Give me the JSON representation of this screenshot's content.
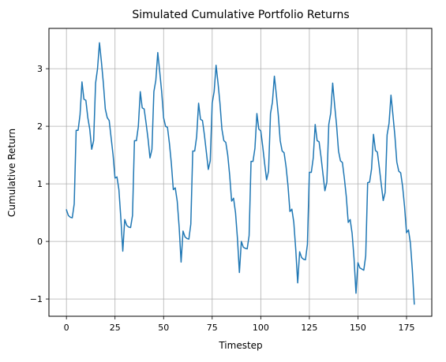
{
  "chart_data": {
    "type": "line",
    "title": "Simulated Cumulative Portfolio Returns",
    "xlabel": "Timestep",
    "ylabel": "Cumulative Return",
    "xlim": [
      -9,
      188
    ],
    "ylim": [
      -1.3,
      3.7
    ],
    "xticks": [
      0,
      25,
      50,
      75,
      100,
      125,
      150,
      175
    ],
    "yticks": [
      -1,
      0,
      1,
      2,
      3
    ],
    "grid": true,
    "series": [
      {
        "color": "#1f77b4",
        "x": [
          0,
          1,
          2,
          3,
          4,
          5,
          6,
          7,
          8,
          9,
          10,
          11,
          12,
          13,
          14,
          15,
          16,
          17,
          18,
          19,
          20,
          21,
          22,
          23,
          24,
          25,
          26,
          27,
          28,
          29,
          30,
          31,
          32,
          33,
          34,
          35,
          36,
          37,
          38,
          39,
          40,
          41,
          42,
          43,
          44,
          45,
          46,
          47,
          48,
          49,
          50,
          51,
          52,
          53,
          54,
          55,
          56,
          57,
          58,
          59,
          60,
          61,
          62,
          63,
          64,
          65,
          66,
          67,
          68,
          69,
          70,
          71,
          72,
          73,
          74,
          75,
          76,
          77,
          78,
          79,
          80,
          81,
          82,
          83,
          84,
          85,
          86,
          87,
          88,
          89,
          90,
          91,
          92,
          93,
          94,
          95,
          96,
          97,
          98,
          99,
          100,
          101,
          102,
          103,
          104,
          105,
          106,
          107,
          108,
          109,
          110,
          111,
          112,
          113,
          114,
          115,
          116,
          117,
          118,
          119,
          120,
          121,
          122,
          123,
          124,
          125,
          126,
          127,
          128,
          129,
          130,
          131,
          132,
          133,
          134,
          135,
          136,
          137,
          138,
          139,
          140,
          141,
          142,
          143,
          144,
          145,
          146,
          147,
          148,
          149,
          150,
          151,
          152,
          153,
          154,
          155,
          156,
          157,
          158,
          159,
          160,
          161,
          162,
          163,
          164,
          165,
          166,
          167,
          168,
          169,
          170,
          171,
          172,
          173,
          174,
          175,
          176,
          177,
          178,
          179
        ],
        "values": [
          0.55,
          0.45,
          0.42,
          0.41,
          0.65,
          1.93,
          1.93,
          2.2,
          2.77,
          2.47,
          2.45,
          2.15,
          1.95,
          1.6,
          1.75,
          2.75,
          3.0,
          3.45,
          3.12,
          2.75,
          2.3,
          2.15,
          2.1,
          1.8,
          1.5,
          1.1,
          1.12,
          0.9,
          0.4,
          -0.17,
          0.38,
          0.28,
          0.25,
          0.24,
          0.45,
          1.75,
          1.75,
          2.0,
          2.6,
          2.32,
          2.3,
          2.05,
          1.78,
          1.45,
          1.6,
          2.6,
          2.8,
          3.28,
          2.95,
          2.6,
          2.15,
          2.0,
          1.98,
          1.7,
          1.35,
          0.9,
          0.93,
          0.7,
          0.25,
          -0.36,
          0.18,
          0.08,
          0.05,
          0.04,
          0.3,
          1.57,
          1.57,
          1.82,
          2.4,
          2.12,
          2.1,
          1.85,
          1.55,
          1.25,
          1.4,
          2.4,
          2.6,
          3.06,
          2.75,
          2.4,
          1.95,
          1.75,
          1.72,
          1.5,
          1.15,
          0.7,
          0.75,
          0.5,
          0.05,
          -0.54,
          0.0,
          -0.1,
          -0.12,
          -0.13,
          0.1,
          1.39,
          1.39,
          1.62,
          2.22,
          1.95,
          1.92,
          1.65,
          1.35,
          1.07,
          1.22,
          2.22,
          2.42,
          2.87,
          2.55,
          2.2,
          1.75,
          1.57,
          1.54,
          1.3,
          0.97,
          0.52,
          0.56,
          0.33,
          -0.14,
          -0.72,
          -0.18,
          -0.28,
          -0.31,
          -0.32,
          -0.05,
          1.2,
          1.2,
          1.45,
          2.03,
          1.75,
          1.73,
          1.47,
          1.17,
          0.88,
          1.03,
          2.03,
          2.23,
          2.75,
          2.37,
          2.02,
          1.57,
          1.4,
          1.37,
          1.1,
          0.78,
          0.33,
          0.38,
          0.14,
          -0.3,
          -0.9,
          -0.37,
          -0.46,
          -0.48,
          -0.5,
          -0.25,
          1.02,
          1.03,
          1.26,
          1.86,
          1.58,
          1.55,
          1.28,
          0.99,
          0.71,
          0.85,
          1.85,
          2.05,
          2.54,
          2.2,
          1.84,
          1.38,
          1.22,
          1.19,
          0.95,
          0.6,
          0.15,
          0.2,
          -0.03,
          -0.5,
          -1.09
        ]
      }
    ]
  }
}
